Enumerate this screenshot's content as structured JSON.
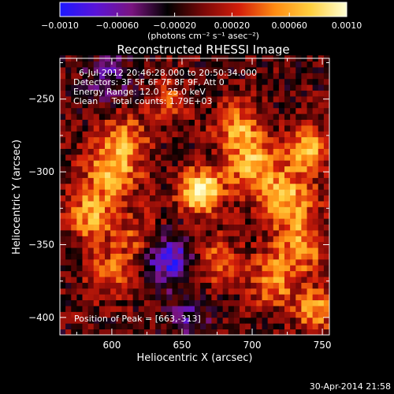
{
  "chart_data": {
    "type": "heatmap",
    "title": "Reconstructed RHESSI Image",
    "xlabel": "Heliocentric X (arcsec)",
    "ylabel": "Heliocentric Y (arcsec)",
    "xlim": [
      563,
      755
    ],
    "ylim": [
      -412,
      -222
    ],
    "x_ticks": [
      600,
      650,
      700,
      750
    ],
    "x_tick_labels": [
      "600",
      "650",
      "700",
      "750"
    ],
    "y_ticks": [
      -250,
      -300,
      -350,
      -400
    ],
    "y_tick_labels": [
      "−250",
      "−300",
      "−350",
      "−400"
    ],
    "colorbar": {
      "min": -0.001,
      "max": 0.001,
      "tick_values": [
        -0.001,
        -0.0006,
        -0.0002,
        0.0002,
        0.0006,
        0.001
      ],
      "tick_labels": [
        "−0.0010",
        "−0.00060",
        "−0.00020",
        "0.00020",
        "0.00060",
        "0.0010"
      ],
      "unit_label": "(photons cm⁻² s⁻¹ asec⁻²)",
      "colors": [
        "#1c18ff",
        "#5a14d8",
        "#7a1480",
        "#000000",
        "#7a0808",
        "#d41e0a",
        "#ff8c12",
        "#ffd040",
        "#ffffd4"
      ]
    },
    "annotations": [
      "6-Jul-2012 20:46:28.000 to 20:50:34.000",
      "Detectors: 3F 5F 6F 7F 8F 9F, Att 0",
      "Energy Range: 12.0 - 25.0 keV",
      "Clean     Total counts: 1.79E+03"
    ],
    "peak_label": "Position of Peak = [663,-313]",
    "peak": {
      "x": 663,
      "y": -313
    },
    "background_level": -0.0001,
    "sources": [
      {
        "x": 663,
        "y": -313,
        "sigma": 10,
        "amp": 0.0012
      },
      {
        "x": 700,
        "y": -295,
        "sigma": 14,
        "amp": 0.0007
      },
      {
        "x": 690,
        "y": -268,
        "sigma": 12,
        "amp": 0.0006
      },
      {
        "x": 725,
        "y": -318,
        "sigma": 14,
        "amp": 0.0007
      },
      {
        "x": 740,
        "y": -285,
        "sigma": 10,
        "amp": 0.0008
      },
      {
        "x": 735,
        "y": -350,
        "sigma": 14,
        "amp": 0.0006
      },
      {
        "x": 715,
        "y": -375,
        "sigma": 12,
        "amp": 0.0006
      },
      {
        "x": 745,
        "y": -395,
        "sigma": 10,
        "amp": 0.0007
      },
      {
        "x": 610,
        "y": -275,
        "sigma": 12,
        "amp": 0.0005
      },
      {
        "x": 600,
        "y": -300,
        "sigma": 14,
        "amp": 0.0007
      },
      {
        "x": 585,
        "y": -330,
        "sigma": 12,
        "amp": 0.0007
      },
      {
        "x": 620,
        "y": -345,
        "sigma": 12,
        "amp": 0.0004
      },
      {
        "x": 600,
        "y": -370,
        "sigma": 12,
        "amp": 0.0005
      },
      {
        "x": 640,
        "y": -250,
        "sigma": 10,
        "amp": 0.0004
      },
      {
        "x": 675,
        "y": -360,
        "sigma": 12,
        "amp": 0.0005
      },
      {
        "x": 640,
        "y": -360,
        "sigma": 12,
        "amp": -0.0008
      },
      {
        "x": 598,
        "y": -235,
        "sigma": 12,
        "amp": -0.0004
      },
      {
        "x": 655,
        "y": -400,
        "sigma": 10,
        "amp": -0.0004
      }
    ]
  },
  "footer": {
    "timestamp": "30-Apr-2014 21:58"
  }
}
